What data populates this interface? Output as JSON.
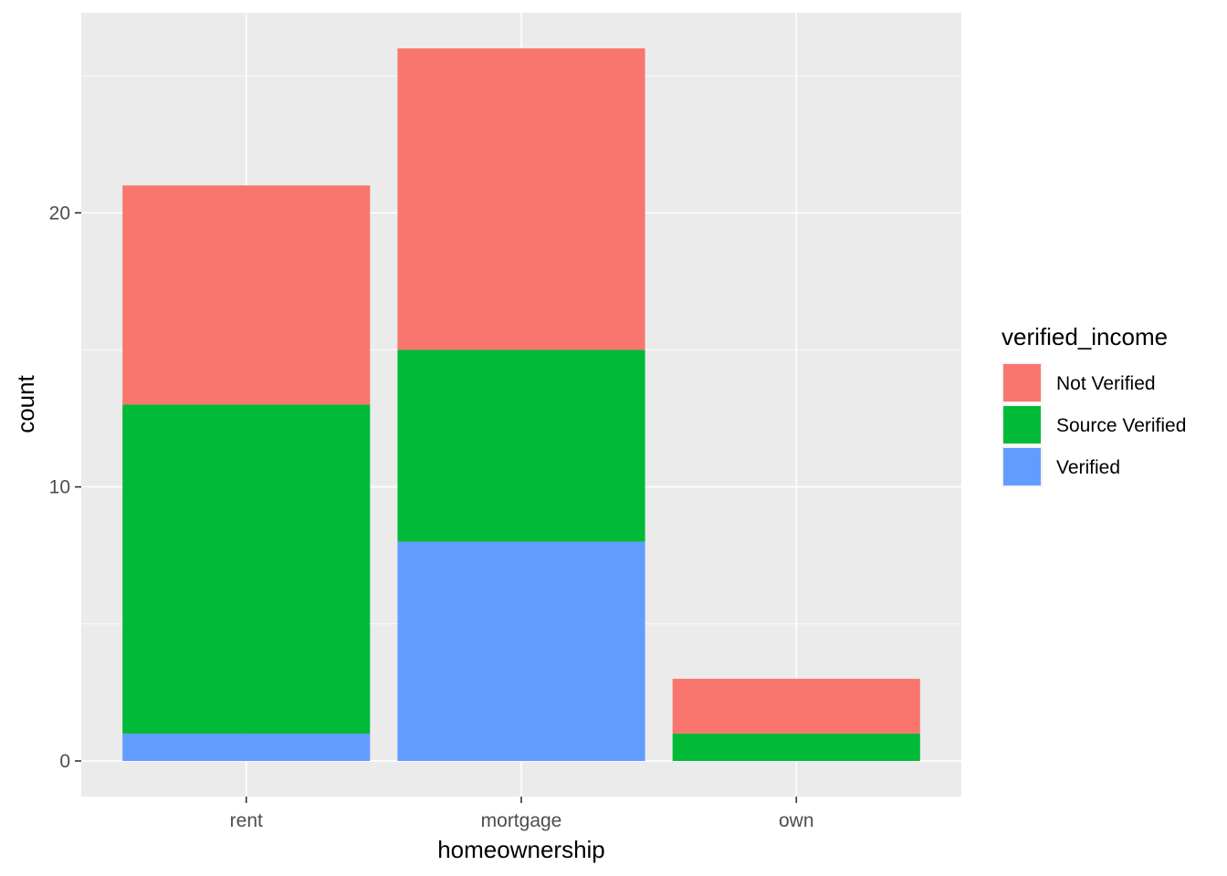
{
  "chart_data": {
    "type": "bar",
    "stacked": true,
    "title": "",
    "xlabel": "homeownership",
    "ylabel": "count",
    "categories": [
      "rent",
      "mortgage",
      "own"
    ],
    "series": [
      {
        "name": "Verified",
        "color": "#619CFF",
        "values": [
          1,
          8,
          0
        ]
      },
      {
        "name": "Source Verified",
        "color": "#00BA38",
        "values": [
          12,
          7,
          1
        ]
      },
      {
        "name": "Not Verified",
        "color": "#F8766D",
        "values": [
          8,
          11,
          2
        ]
      }
    ],
    "ylim": [
      -1.3,
      27.3
    ],
    "yticks": [
      0,
      10,
      20
    ],
    "ytick_labels": [
      "0",
      "10",
      "20"
    ],
    "grid": true,
    "legend": {
      "title": "verified_income",
      "position": "right",
      "order": [
        "Not Verified",
        "Source Verified",
        "Verified"
      ]
    },
    "panel_background": "#EBEBEB",
    "grid_color": "#FFFFFF"
  }
}
